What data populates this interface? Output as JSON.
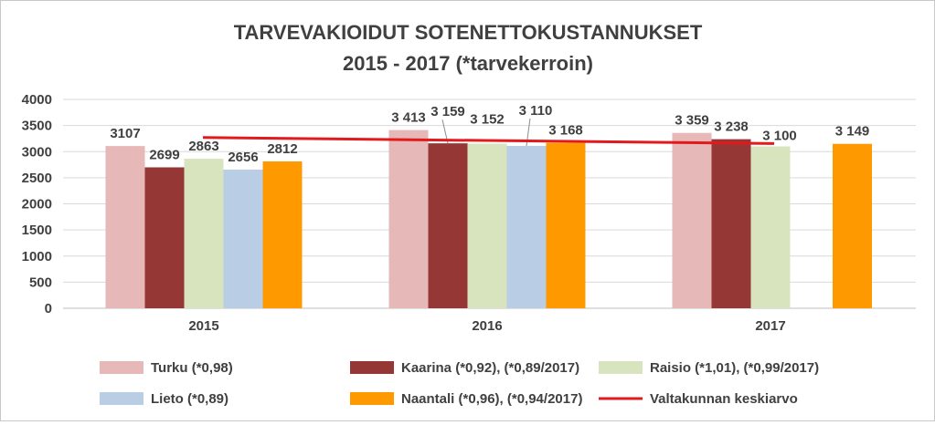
{
  "chart_data": {
    "type": "bar",
    "title": "TARVEVAKIOIDUT SOTENETTOKUSTANNUKSET",
    "subtitle": "2015 - 2017 (*tarvekerroin)",
    "categories": [
      "2015",
      "2016",
      "2017"
    ],
    "ylim": [
      0,
      4000
    ],
    "yticks": [
      "0",
      "500",
      "1000",
      "1500",
      "2000",
      "2500",
      "3000",
      "3500",
      "4000"
    ],
    "ytick_values": [
      0,
      500,
      1000,
      1500,
      2000,
      2500,
      3000,
      3500,
      4000
    ],
    "grid": true,
    "legend_position": "bottom",
    "series": [
      {
        "name": "Turku (*0,98)",
        "color": "#e6b8b7",
        "values": [
          3107,
          3413,
          3359
        ],
        "labels": [
          "3107",
          "3 413",
          "3 359"
        ]
      },
      {
        "name": "Kaarina (*0,92), (*0,89/2017)",
        "color": "#953735",
        "values": [
          2699,
          3159,
          3238
        ],
        "labels": [
          "2699",
          "3 159",
          "3 238"
        ]
      },
      {
        "name": "Raisio (*1,01), (*0,99/2017)",
        "color": "#d7e4bd",
        "values": [
          2863,
          3152,
          3100
        ],
        "labels": [
          "2863",
          "3 152",
          "3 100"
        ]
      },
      {
        "name": "Lieto (*0,89)",
        "color": "#b9cde5",
        "values": [
          2656,
          3110,
          null
        ],
        "labels": [
          "2656",
          "3 110",
          ""
        ]
      },
      {
        "name": "Naantali (*0,96), (*0,94/2017)",
        "color": "#ff9900",
        "values": [
          2812,
          3168,
          3149
        ],
        "labels": [
          "2812",
          "3 168",
          "3 149"
        ]
      }
    ],
    "reference_line": {
      "name": "Valtakunnan keskiarvo",
      "color": "#e31a1c",
      "start_value": 3270,
      "end_value": 3155
    }
  }
}
